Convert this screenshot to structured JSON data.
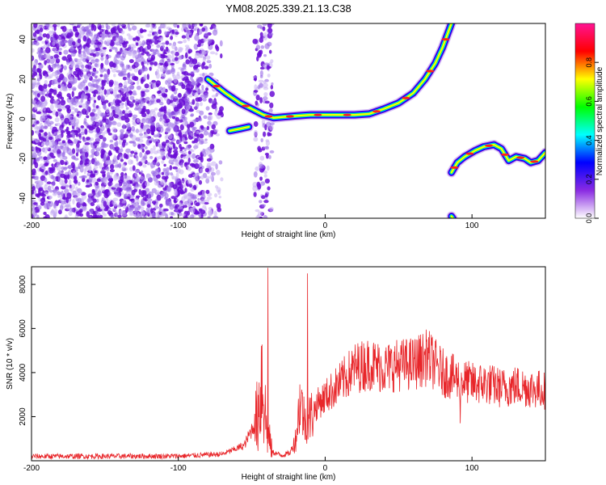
{
  "title": "YM08.2025.339.21.13.C38",
  "chart_data": [
    {
      "type": "heatmap",
      "xlabel": "Height of straight line (km)",
      "ylabel": "Frequency (Hz)",
      "xlim": [
        -200,
        150
      ],
      "ylim": [
        -50,
        48
      ],
      "xticks": [
        -200,
        -100,
        0,
        100
      ],
      "yticks": [
        -40,
        -20,
        0,
        20,
        40
      ],
      "colorbar": {
        "label": "Normalized spectral amplitude",
        "range": [
          0,
          1
        ],
        "ticks": [
          "0.0",
          "0.2",
          "0.4",
          "0.6",
          "0.8"
        ],
        "colormap": [
          "#ffffff",
          "#8a2be2",
          "#0000ff",
          "#00ffff",
          "#00ff00",
          "#ffff00",
          "#ff0000",
          "#ff1493"
        ]
      },
      "noise_region": {
        "x": [
          -200,
          -70
        ],
        "extra_x": [
          -48,
          -36
        ],
        "freq": [
          -50,
          48
        ]
      },
      "ridges": [
        {
          "name": "",
          "points": [
            [
              -80,
              20
            ],
            [
              -68,
              13
            ],
            [
              -58,
              8
            ],
            [
              -50,
              5
            ],
            [
              -42,
              2
            ],
            [
              -35,
              0.5
            ],
            [
              -28,
              1
            ],
            [
              -20,
              1.5
            ],
            [
              -10,
              2
            ],
            [
              0,
              2
            ],
            [
              10,
              2
            ],
            [
              20,
              2
            ],
            [
              30,
              2.5
            ],
            [
              40,
              5
            ],
            [
              50,
              8
            ],
            [
              60,
              13
            ],
            [
              68,
              20
            ],
            [
              75,
              28
            ],
            [
              80,
              36
            ],
            [
              84,
              44
            ],
            [
              86,
              48
            ]
          ]
        },
        {
          "name": "",
          "points": [
            [
              -65,
              -6
            ],
            [
              -58,
              -5
            ],
            [
              -52,
              -4
            ]
          ]
        },
        {
          "name": "",
          "points": [
            [
              86,
              -27
            ],
            [
              90,
              -22
            ],
            [
              95,
              -19
            ],
            [
              102,
              -16
            ],
            [
              108,
              -14
            ],
            [
              115,
              -13
            ],
            [
              120,
              -15
            ],
            [
              125,
              -21
            ],
            [
              130,
              -19
            ],
            [
              136,
              -20
            ],
            [
              140,
              -22
            ],
            [
              145,
              -21
            ],
            [
              150,
              -17
            ]
          ]
        },
        {
          "name": "",
          "points": [
            [
              86,
              -49
            ],
            [
              87,
              -50
            ]
          ]
        }
      ]
    },
    {
      "type": "line",
      "xlabel": "Height of straight line (km)",
      "ylabel": "SNR (10 * v/v)",
      "xlim": [
        -200,
        150
      ],
      "ylim": [
        0,
        8800
      ],
      "xticks": [
        -200,
        -100,
        0,
        100
      ],
      "yticks": [
        2000,
        4000,
        6000,
        8000
      ],
      "color": "#e8262a",
      "profile": [
        [
          -200,
          200
        ],
        [
          -100,
          210
        ],
        [
          -70,
          300
        ],
        [
          -55,
          700
        ],
        [
          -46,
          2000
        ],
        [
          -43,
          4000
        ],
        [
          -40,
          1500
        ],
        [
          -36,
          400
        ],
        [
          -30,
          250
        ],
        [
          -24,
          350
        ],
        [
          -20,
          1000
        ],
        [
          -17,
          2800
        ],
        [
          -14,
          1800
        ],
        [
          -10,
          2000
        ],
        [
          -5,
          2600
        ],
        [
          0,
          2900
        ],
        [
          10,
          3500
        ],
        [
          20,
          4200
        ],
        [
          30,
          4400
        ],
        [
          40,
          4200
        ],
        [
          50,
          4350
        ],
        [
          60,
          4400
        ],
        [
          70,
          4700
        ],
        [
          80,
          4000
        ],
        [
          90,
          3700
        ],
        [
          100,
          3500
        ],
        [
          110,
          3500
        ],
        [
          120,
          3300
        ],
        [
          130,
          3400
        ],
        [
          140,
          3300
        ],
        [
          150,
          3200
        ]
      ],
      "spikes": [
        [
          -39,
          8750
        ],
        [
          -12,
          8500
        ],
        [
          69,
          5400
        ],
        [
          92,
          1700
        ]
      ]
    }
  ]
}
